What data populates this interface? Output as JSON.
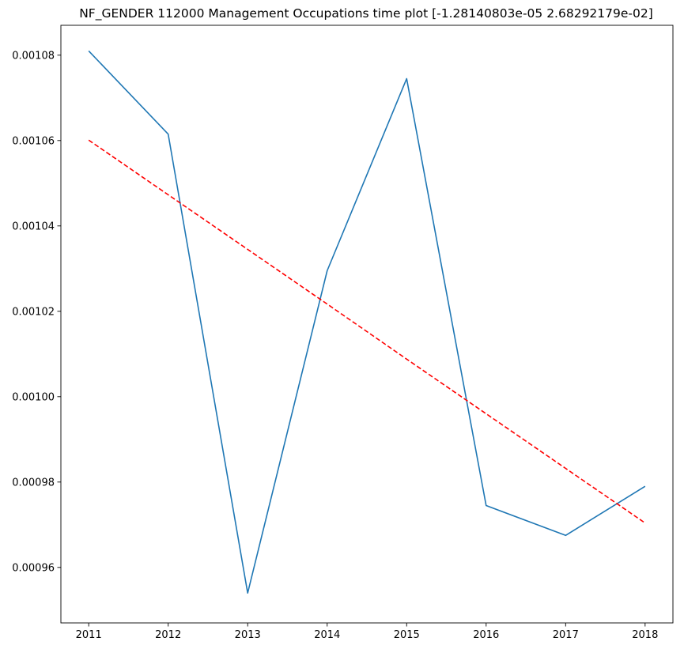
{
  "chart_data": {
    "type": "line",
    "title": "NF_GENDER 112000 Management Occupations time plot [-1.28140803e-05  2.68292179e-02]",
    "xlabel": "",
    "ylabel": "",
    "x": [
      "2011",
      "2012",
      "2013",
      "2014",
      "2015",
      "2016",
      "2017",
      "2018"
    ],
    "series": [
      {
        "values": [
          0.001081,
          0.0010615,
          0.000954,
          0.0010295,
          0.0010745,
          0.0009745,
          0.0009675,
          0.000979
        ],
        "color": "#1f77b4",
        "style": "solid"
      },
      {
        "values": [
          0.0010601,
          0.0010473,
          0.0010345,
          0.0010217,
          0.0010088,
          0.000996,
          0.0009832,
          0.0009704
        ],
        "color": "#ff0000",
        "style": "dashed"
      }
    ],
    "xlim": [
      2011,
      2018
    ],
    "ylim": [
      0.000947,
      0.001087
    ],
    "yticks": [
      "0.00096",
      "0.00098",
      "0.00100",
      "0.00102",
      "0.00104",
      "0.00106",
      "0.00108"
    ],
    "ytick_values": [
      0.00096,
      0.00098,
      0.001,
      0.00102,
      0.00104,
      0.00106,
      0.00108
    ],
    "grid": false,
    "legend": "none"
  }
}
